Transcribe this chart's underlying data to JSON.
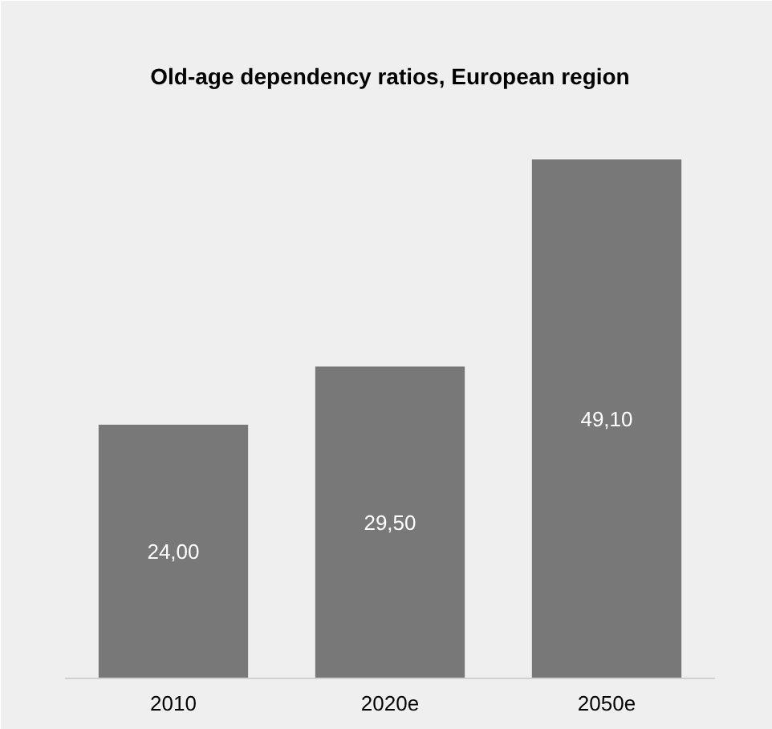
{
  "chart_data": {
    "type": "bar",
    "title": "Old-age dependency ratios, European region",
    "categories": [
      "2010",
      "2020e",
      "2050e"
    ],
    "values": [
      24.0,
      29.5,
      49.1
    ],
    "value_labels": [
      "24,00",
      "29,50",
      "49,10"
    ],
    "color": "#787878",
    "grid": false
  }
}
